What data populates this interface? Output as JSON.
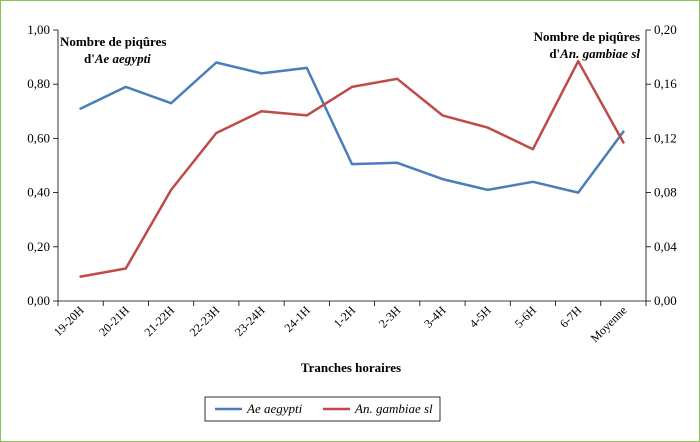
{
  "chart_data": {
    "type": "line",
    "xlabel": "Tranches horaires",
    "categories": [
      "19-20H",
      "20-21H",
      "21-22H",
      "22-23H",
      "23-24H",
      "24-1H",
      "1-2H",
      "2-3H",
      "3-4H",
      "4-5H",
      "5-6H",
      "6-7H",
      "Moyenne"
    ],
    "left_axis": {
      "ylim": [
        0,
        1.0
      ],
      "ticks": [
        "0,00",
        "0,20",
        "0,40",
        "0,60",
        "0,80",
        "1,00"
      ],
      "tick_values": [
        0,
        0.2,
        0.4,
        0.6,
        0.8,
        1.0
      ]
    },
    "right_axis": {
      "ylim": [
        0,
        0.2
      ],
      "ticks": [
        "0,00",
        "0,04",
        "0,08",
        "0,12",
        "0,16",
        "0,20"
      ],
      "tick_values": [
        0,
        0.04,
        0.08,
        0.12,
        0.16,
        0.2
      ]
    },
    "annotations": {
      "left": {
        "line1": "Nombre de piqûres",
        "line2_prefix": "d'",
        "line2_italic": "Ae aegypti"
      },
      "right": {
        "line1": "Nombre de piqûres",
        "line2_prefix": "d'",
        "line2_italic": "An. gambiae sl"
      }
    },
    "series": [
      {
        "name": "Ae aegypti",
        "axis": "left",
        "color": "#4a7ebb",
        "values": [
          0.71,
          0.79,
          0.73,
          0.88,
          0.84,
          0.86,
          0.505,
          0.51,
          0.45,
          0.41,
          0.44,
          0.4,
          0.625
        ]
      },
      {
        "name": "An. gambiae sl",
        "axis": "right",
        "color": "#be4b48",
        "values": [
          0.018,
          0.024,
          0.082,
          0.124,
          0.14,
          0.137,
          0.158,
          0.164,
          0.137,
          0.128,
          0.112,
          0.177,
          0.117
        ]
      }
    ],
    "legend": {
      "placement": "bottom"
    },
    "grid": false
  }
}
